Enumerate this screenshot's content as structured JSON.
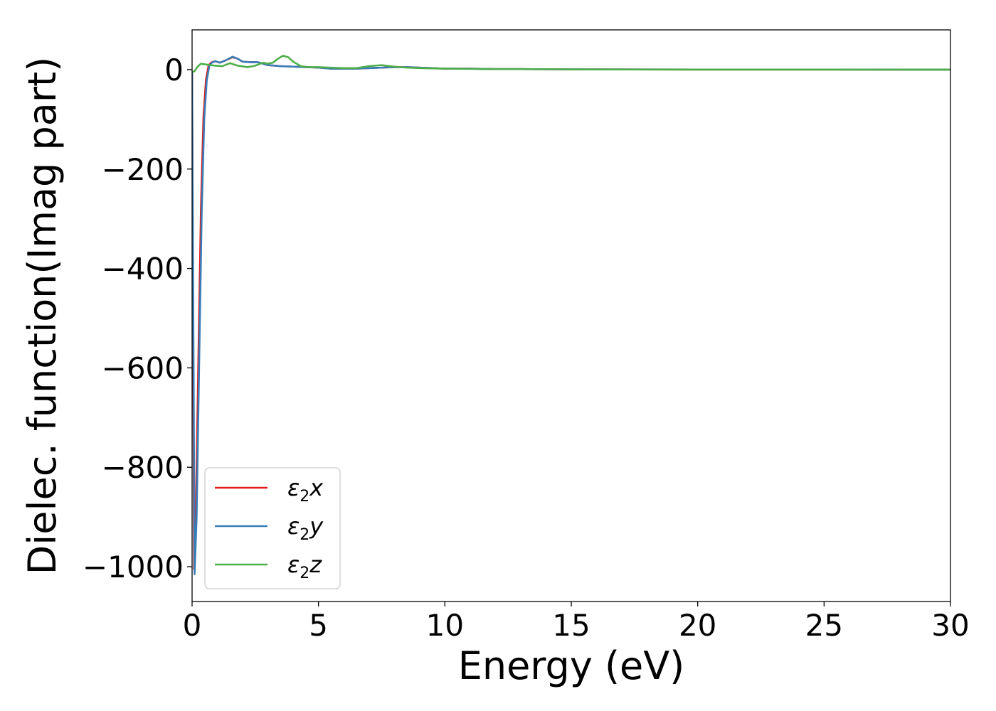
{
  "chart_data": {
    "type": "line",
    "title": "",
    "xlabel": "Energy (eV)",
    "ylabel": "Dielec. function(Imag part)",
    "xlim": [
      0,
      30
    ],
    "ylim": [
      -1070,
      80
    ],
    "x_ticks": [
      0,
      5,
      10,
      15,
      20,
      25,
      30
    ],
    "x_tick_labels": [
      "0",
      "5",
      "10",
      "15",
      "20",
      "25",
      "30"
    ],
    "y_ticks": [
      0,
      -200,
      -400,
      -600,
      -800,
      -1000
    ],
    "y_tick_labels": [
      "0",
      "−200",
      "−400",
      "−600",
      "−800",
      "−1000"
    ],
    "grid": false,
    "legend_position": "lower-left",
    "series": [
      {
        "name": "ε₂x",
        "legend": {
          "symbol": "ε",
          "sub": "2",
          "axis": "x"
        },
        "color": "#e41a1c",
        "points": [
          [
            0,
            -5
          ],
          [
            0.08,
            -1005
          ],
          [
            0.15,
            -890
          ],
          [
            0.25,
            -580
          ],
          [
            0.35,
            -280
          ],
          [
            0.45,
            -95
          ],
          [
            0.55,
            -20
          ],
          [
            0.65,
            8
          ],
          [
            0.75,
            14
          ],
          [
            0.9,
            17
          ],
          [
            1.1,
            14
          ],
          [
            1.3,
            18
          ],
          [
            1.6,
            25
          ],
          [
            1.8,
            22
          ],
          [
            2.0,
            16
          ],
          [
            2.3,
            15
          ],
          [
            2.6,
            15
          ],
          [
            2.8,
            12
          ],
          [
            3.0,
            9
          ],
          [
            3.5,
            7
          ],
          [
            4.0,
            6
          ],
          [
            4.5,
            5
          ],
          [
            5.0,
            4
          ],
          [
            5.5,
            2
          ],
          [
            6.0,
            2
          ],
          [
            6.5,
            2
          ],
          [
            7.0,
            3
          ],
          [
            7.5,
            4
          ],
          [
            8.0,
            5
          ],
          [
            8.5,
            5
          ],
          [
            9.0,
            4
          ],
          [
            9.5,
            3
          ],
          [
            10,
            2
          ],
          [
            11,
            2
          ],
          [
            12,
            1
          ],
          [
            13,
            1
          ],
          [
            15,
            0.5
          ],
          [
            20,
            0.2
          ],
          [
            25,
            0.1
          ],
          [
            30,
            0
          ]
        ]
      },
      {
        "name": "ε₂y",
        "legend": {
          "symbol": "ε",
          "sub": "2",
          "axis": "y"
        },
        "color": "#377eb8",
        "points": [
          [
            0,
            -5
          ],
          [
            0.1,
            -1015
          ],
          [
            0.18,
            -900
          ],
          [
            0.28,
            -590
          ],
          [
            0.38,
            -290
          ],
          [
            0.48,
            -100
          ],
          [
            0.58,
            -22
          ],
          [
            0.68,
            7
          ],
          [
            0.78,
            14
          ],
          [
            0.92,
            17
          ],
          [
            1.1,
            14
          ],
          [
            1.3,
            18
          ],
          [
            1.6,
            26
          ],
          [
            1.8,
            22
          ],
          [
            2.0,
            16
          ],
          [
            2.3,
            15
          ],
          [
            2.6,
            15
          ],
          [
            2.8,
            12
          ],
          [
            3.0,
            9
          ],
          [
            3.5,
            7
          ],
          [
            4.0,
            6
          ],
          [
            4.5,
            5
          ],
          [
            5.0,
            4
          ],
          [
            5.5,
            2
          ],
          [
            6.0,
            2
          ],
          [
            6.5,
            2
          ],
          [
            7.0,
            3
          ],
          [
            7.5,
            4
          ],
          [
            8.0,
            5
          ],
          [
            8.5,
            5
          ],
          [
            9.0,
            4
          ],
          [
            9.5,
            3
          ],
          [
            10,
            2
          ],
          [
            11,
            2
          ],
          [
            12,
            1
          ],
          [
            13,
            1
          ],
          [
            15,
            0.5
          ],
          [
            20,
            0.2
          ],
          [
            25,
            0.1
          ],
          [
            30,
            0
          ]
        ]
      },
      {
        "name": "ε₂z",
        "legend": {
          "symbol": "ε",
          "sub": "2",
          "axis": "z"
        },
        "color": "#4daf4a",
        "points": [
          [
            0,
            -5
          ],
          [
            0.1,
            -3
          ],
          [
            0.2,
            5
          ],
          [
            0.35,
            12
          ],
          [
            0.6,
            10
          ],
          [
            0.9,
            8
          ],
          [
            1.2,
            7
          ],
          [
            1.5,
            13
          ],
          [
            1.8,
            8
          ],
          [
            2.2,
            5
          ],
          [
            2.5,
            8
          ],
          [
            2.8,
            14
          ],
          [
            3.0,
            12
          ],
          [
            3.2,
            14
          ],
          [
            3.4,
            22
          ],
          [
            3.6,
            28
          ],
          [
            3.8,
            25
          ],
          [
            4.0,
            16
          ],
          [
            4.3,
            7
          ],
          [
            4.6,
            5
          ],
          [
            5.0,
            5
          ],
          [
            5.5,
            4
          ],
          [
            6.0,
            3
          ],
          [
            6.5,
            3
          ],
          [
            7.0,
            7
          ],
          [
            7.5,
            9
          ],
          [
            8.0,
            6
          ],
          [
            8.5,
            4
          ],
          [
            9.0,
            3
          ],
          [
            10,
            2
          ],
          [
            11,
            1.5
          ],
          [
            12,
            1
          ],
          [
            13,
            1
          ],
          [
            15,
            0.5
          ],
          [
            20,
            0.2
          ],
          [
            25,
            0.1
          ],
          [
            30,
            0
          ]
        ]
      }
    ]
  }
}
